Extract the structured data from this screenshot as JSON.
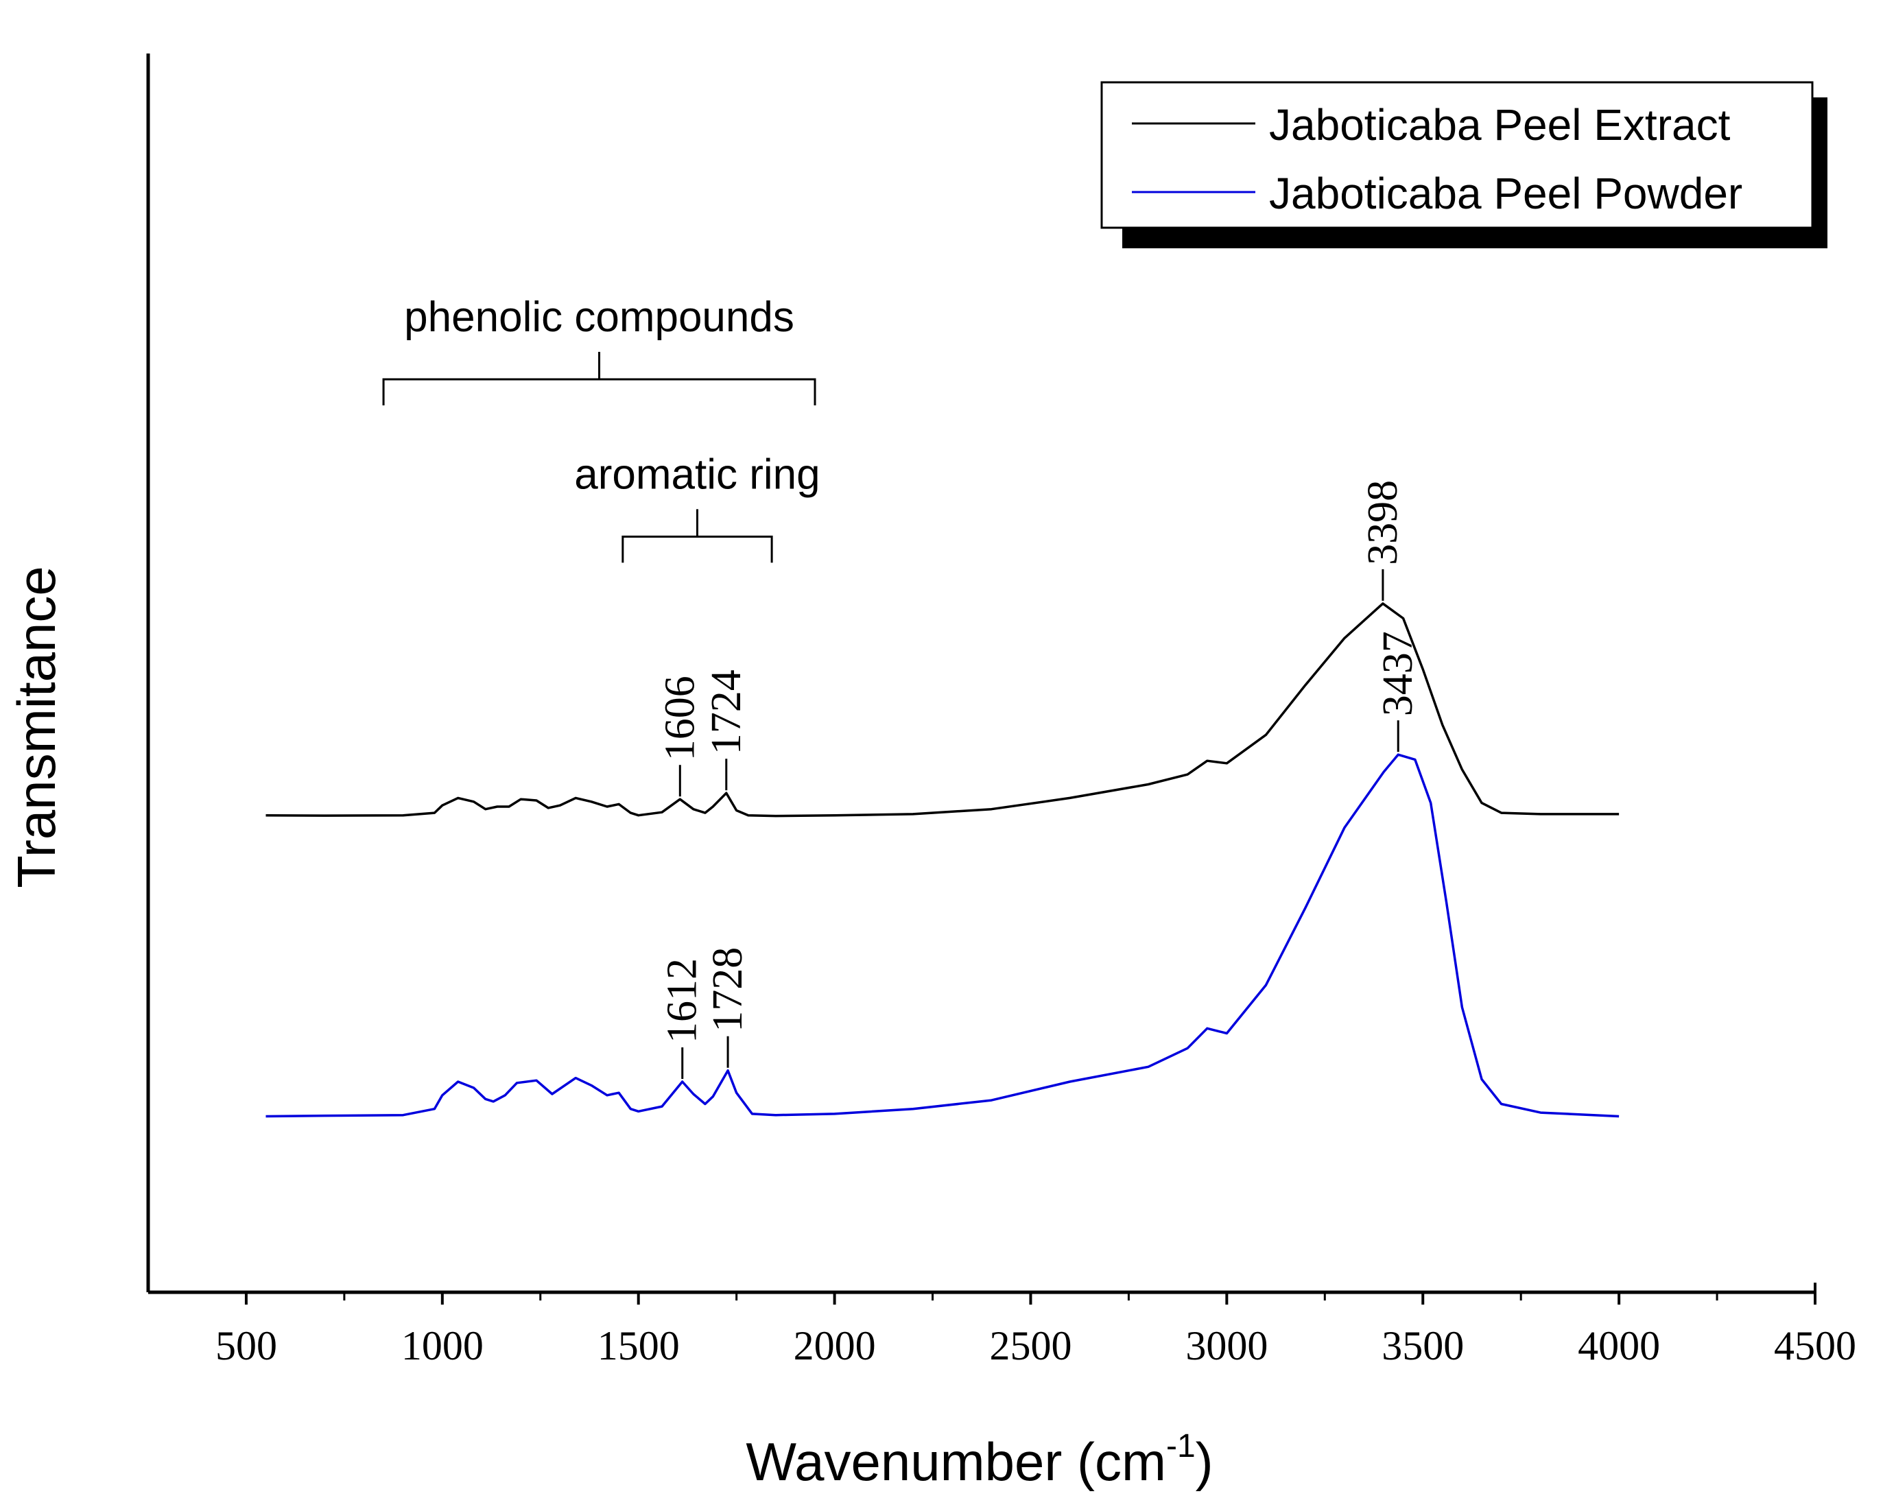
{
  "chart_data": {
    "type": "line",
    "title": "",
    "xlabel": "Wavenumber (cm",
    "xlabel_sup": "-1",
    "xlabel_close": ")",
    "ylabel": "Transmitance",
    "xlim": [
      250,
      4500
    ],
    "ylim": [
      0,
      10
    ],
    "yticks_shown": false,
    "xticks": [
      500,
      1000,
      1500,
      2000,
      2500,
      3000,
      3500,
      4000,
      4500
    ],
    "xtick_labels": [
      "500",
      "1000",
      "1500",
      "2000",
      "2500",
      "3000",
      "3500",
      "4000",
      "4500"
    ],
    "legend_position": "top-right",
    "series": [
      {
        "name": "Jaboticaba Peel Extract",
        "color": "#000000",
        "x": [
          550,
          700,
          900,
          980,
          1000,
          1040,
          1080,
          1110,
          1140,
          1170,
          1200,
          1240,
          1270,
          1300,
          1340,
          1380,
          1420,
          1450,
          1480,
          1500,
          1560,
          1606,
          1640,
          1670,
          1690,
          1724,
          1750,
          1780,
          1850,
          2000,
          2200,
          2400,
          2600,
          2800,
          2900,
          2950,
          3000,
          3100,
          3200,
          3300,
          3398,
          3450,
          3500,
          3550,
          3600,
          3650,
          3700,
          3800,
          4000
        ],
        "y": [
          3.85,
          3.848,
          3.85,
          3.87,
          3.93,
          3.99,
          3.96,
          3.9,
          3.92,
          3.92,
          3.98,
          3.97,
          3.91,
          3.93,
          3.99,
          3.96,
          3.92,
          3.94,
          3.87,
          3.85,
          3.875,
          3.98,
          3.9,
          3.87,
          3.92,
          4.03,
          3.89,
          3.85,
          3.845,
          3.85,
          3.86,
          3.9,
          3.99,
          4.1,
          4.18,
          4.29,
          4.27,
          4.5,
          4.9,
          5.28,
          5.56,
          5.44,
          5.03,
          4.58,
          4.22,
          3.95,
          3.87,
          3.86,
          3.86
        ]
      },
      {
        "name": "Jaboticaba Peel Powder",
        "color": "#0000dd",
        "x": [
          550,
          700,
          900,
          980,
          1000,
          1040,
          1080,
          1110,
          1130,
          1160,
          1190,
          1240,
          1280,
          1340,
          1380,
          1420,
          1450,
          1480,
          1500,
          1560,
          1612,
          1640,
          1670,
          1690,
          1728,
          1750,
          1790,
          1850,
          2000,
          2200,
          2400,
          2600,
          2800,
          2900,
          2950,
          3000,
          3100,
          3200,
          3300,
          3400,
          3437,
          3480,
          3520,
          3560,
          3600,
          3650,
          3700,
          3800,
          4000
        ],
        "y": [
          1.42,
          1.425,
          1.43,
          1.48,
          1.59,
          1.7,
          1.65,
          1.56,
          1.54,
          1.59,
          1.69,
          1.71,
          1.6,
          1.73,
          1.67,
          1.59,
          1.61,
          1.48,
          1.46,
          1.5,
          1.7,
          1.6,
          1.52,
          1.58,
          1.79,
          1.61,
          1.44,
          1.43,
          1.44,
          1.48,
          1.55,
          1.7,
          1.82,
          1.97,
          2.13,
          2.09,
          2.48,
          3.1,
          3.75,
          4.2,
          4.34,
          4.3,
          3.95,
          3.15,
          2.3,
          1.72,
          1.52,
          1.45,
          1.42
        ]
      }
    ],
    "peak_annotations": [
      {
        "series": 0,
        "x": 1606,
        "label": "1606"
      },
      {
        "series": 0,
        "x": 1724,
        "label": "1724"
      },
      {
        "series": 0,
        "x": 3398,
        "label": "3398"
      },
      {
        "series": 1,
        "x": 1612,
        "label": "1612"
      },
      {
        "series": 1,
        "x": 1728,
        "label": "1728"
      },
      {
        "series": 1,
        "x": 3437,
        "label": "3437"
      }
    ],
    "region_annotations": [
      {
        "label": "phenolic compounds",
        "x_from": 850,
        "x_to": 1950,
        "level": 7.37
      },
      {
        "label": "aromatic ring",
        "x_from": 1460,
        "x_to": 1840,
        "level": 6.1
      }
    ]
  }
}
